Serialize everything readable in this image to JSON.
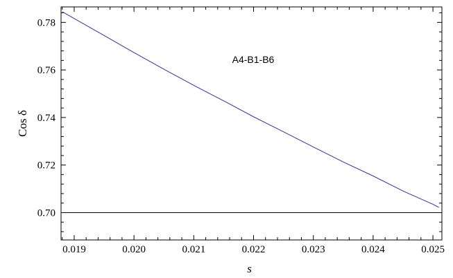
{
  "chart_data": {
    "type": "line",
    "title": "",
    "xlabel": "s",
    "ylabel": "Cos δ",
    "xlim": [
      0.01878,
      0.02515
    ],
    "ylim": [
      0.6885,
      0.7865
    ],
    "xticks": [
      0.019,
      0.02,
      0.021,
      0.022,
      0.023,
      0.024,
      0.025
    ],
    "xtick_labels": [
      "0.019",
      "0.020",
      "0.021",
      "0.022",
      "0.023",
      "0.024",
      "0.025"
    ],
    "yticks": [
      0.7,
      0.72,
      0.74,
      0.76,
      0.78
    ],
    "ytick_labels": [
      "0.70",
      "0.72",
      "0.74",
      "0.76",
      "0.78"
    ],
    "annotation": "A4-B1-B6",
    "grid": false,
    "series": [
      {
        "color": "#33339a",
        "x": [
          0.0188,
          0.019,
          0.0195,
          0.02,
          0.0205,
          0.021,
          0.0215,
          0.022,
          0.0225,
          0.023,
          0.0235,
          0.024,
          0.0245,
          0.025,
          0.0251
        ],
        "y": [
          0.7845,
          0.7816,
          0.7745,
          0.7673,
          0.7603,
          0.7535,
          0.747,
          0.7403,
          0.734,
          0.7276,
          0.7213,
          0.7154,
          0.7091,
          0.7035,
          0.7022
        ]
      }
    ],
    "hlines": [
      {
        "y": 0.7,
        "color": "#000000"
      }
    ]
  }
}
